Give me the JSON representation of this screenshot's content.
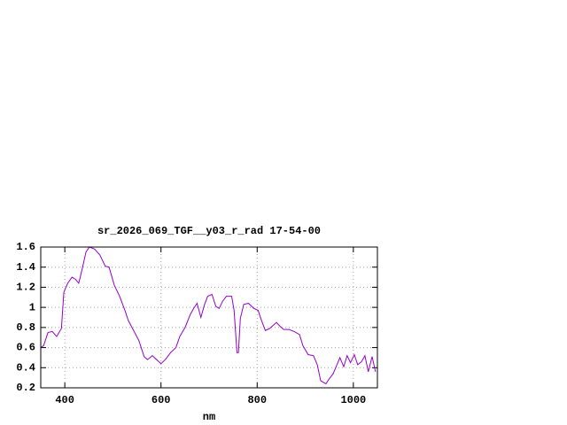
{
  "chart_data": {
    "type": "line",
    "title": "sr_2026_069_TGF__y03_r_rad 17-54-00",
    "x_label": "nm",
    "xlim": [
      350,
      1050
    ],
    "xticks": [
      400,
      600,
      800,
      1000
    ],
    "ylim": [
      0.2,
      1.6
    ],
    "yticks": [
      0.2,
      0.4,
      0.6,
      0.8,
      1,
      1.2,
      1.4,
      1.6
    ],
    "grid": true,
    "series": [
      {
        "color": "#9400d3",
        "x": [
          350,
          356,
          365,
          374,
          383,
          393,
          398,
          406,
          415,
          422,
          429,
          437,
          444,
          451,
          462,
          473,
          484,
          492,
          503,
          514,
          525,
          532,
          543,
          554,
          565,
          572,
          582,
          591,
          600,
          609,
          620,
          631,
          639,
          650,
          661,
          668,
          675,
          683,
          690,
          697,
          706,
          714,
          721,
          728,
          736,
          747,
          752,
          758,
          761,
          765,
          772,
          782,
          793,
          802,
          809,
          817,
          826,
          833,
          840,
          848,
          855,
          866,
          877,
          888,
          895,
          906,
          917,
          925,
          932,
          943,
          950,
          958,
          965,
          972,
          980,
          987,
          994,
          1002,
          1009,
          1017,
          1024,
          1031,
          1039,
          1046
        ],
        "values": [
          0.6,
          0.62,
          0.75,
          0.76,
          0.71,
          0.79,
          1.15,
          1.24,
          1.3,
          1.28,
          1.24,
          1.4,
          1.55,
          1.6,
          1.58,
          1.52,
          1.41,
          1.4,
          1.22,
          1.11,
          0.97,
          0.87,
          0.77,
          0.67,
          0.51,
          0.48,
          0.52,
          0.48,
          0.44,
          0.48,
          0.55,
          0.6,
          0.71,
          0.8,
          0.93,
          0.99,
          1.04,
          0.9,
          1.02,
          1.11,
          1.13,
          1.01,
          0.99,
          1.06,
          1.11,
          1.11,
          0.97,
          0.55,
          0.55,
          0.89,
          1.03,
          1.04,
          0.99,
          0.97,
          0.87,
          0.77,
          0.79,
          0.82,
          0.85,
          0.81,
          0.78,
          0.78,
          0.76,
          0.73,
          0.62,
          0.53,
          0.52,
          0.43,
          0.27,
          0.24,
          0.29,
          0.34,
          0.42,
          0.5,
          0.41,
          0.52,
          0.45,
          0.53,
          0.43,
          0.46,
          0.52,
          0.36,
          0.51,
          0.36
        ]
      }
    ]
  }
}
